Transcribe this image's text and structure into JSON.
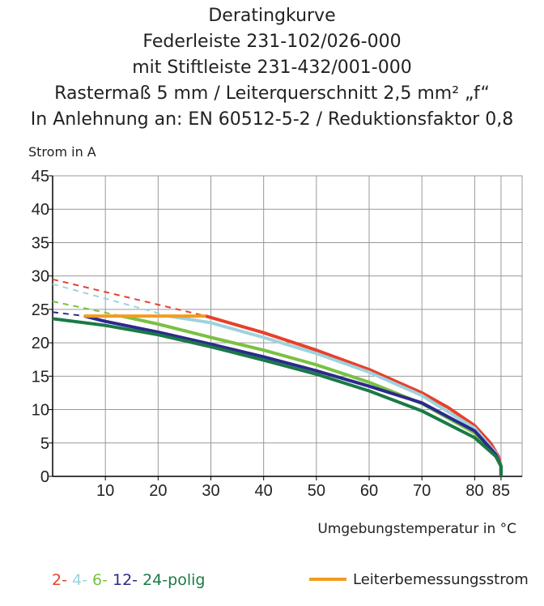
{
  "chart_data": {
    "type": "line",
    "title_lines": [
      "Deratingkurve",
      "Federleiste 231-102/026-000",
      "mit Stiftleiste 231-432/001-000",
      "Rastermaß 5 mm / Leiterquerschnitt 2,5 mm² „f“",
      "In Anlehnung an: EN 60512-5-2 / Reduktionsfaktor 0,8"
    ],
    "y_label": "Strom in A",
    "x_label": "Umgebungstemperatur in °C",
    "xlim": [
      0,
      89
    ],
    "ylim": [
      0,
      45
    ],
    "xticks": [
      10,
      20,
      30,
      40,
      50,
      60,
      70,
      80,
      85
    ],
    "yticks": [
      0,
      5,
      10,
      15,
      20,
      25,
      30,
      35,
      40,
      45
    ],
    "grid": true,
    "legend_suffix": "polig",
    "series": [
      {
        "name": "2-",
        "color": "#e8402c",
        "x": [
          29,
          40,
          50,
          60,
          70,
          75,
          80,
          83,
          84.5,
          85,
          85
        ],
        "values": [
          24,
          21.5,
          18.9,
          16,
          12.5,
          10.3,
          7.6,
          5,
          3,
          1.5,
          0
        ],
        "dashed_x": [
          0,
          29
        ],
        "dashed_values": [
          29.5,
          24
        ]
      },
      {
        "name": "4-",
        "color": "#9dd3dd",
        "x": [
          22,
          30,
          40,
          50,
          60,
          70,
          80,
          84,
          85,
          85
        ],
        "values": [
          24,
          23,
          20.8,
          18.4,
          15.6,
          12.1,
          7.2,
          3.5,
          1.5,
          0
        ],
        "dashed_x": [
          0,
          22
        ],
        "dashed_values": [
          28.8,
          24
        ]
      },
      {
        "name": "6-",
        "color": "#7ac143",
        "x": [
          13,
          20,
          30,
          40,
          50,
          60,
          70,
          80,
          84,
          85,
          85
        ],
        "values": [
          24,
          22.8,
          20.8,
          18.9,
          16.7,
          14.1,
          10.9,
          6.5,
          3.2,
          1.5,
          0
        ],
        "dashed_x": [
          0,
          13
        ],
        "dashed_values": [
          26.2,
          24
        ]
      },
      {
        "name": "12-",
        "color": "#2b2a8c",
        "x": [
          6,
          10,
          20,
          30,
          40,
          50,
          60,
          70,
          80,
          84,
          85,
          85
        ],
        "values": [
          24,
          23.2,
          21.6,
          19.8,
          17.9,
          15.8,
          13.5,
          11,
          6.8,
          3.3,
          1.5,
          0
        ],
        "dashed_x": [
          0,
          6
        ],
        "dashed_values": [
          24.6,
          24
        ]
      },
      {
        "name": "24-",
        "color": "#1a7a45",
        "x": [
          0,
          10,
          20,
          30,
          40,
          50,
          60,
          70,
          80,
          84,
          85,
          85
        ],
        "values": [
          23.6,
          22.6,
          21.2,
          19.4,
          17.4,
          15.3,
          12.8,
          9.8,
          5.8,
          3,
          1.5,
          0
        ]
      }
    ],
    "rated_current": {
      "name": "Leiterbemessungsstrom",
      "color": "#f39c1e",
      "x": [
        6,
        29
      ],
      "values": [
        24,
        24
      ]
    }
  }
}
